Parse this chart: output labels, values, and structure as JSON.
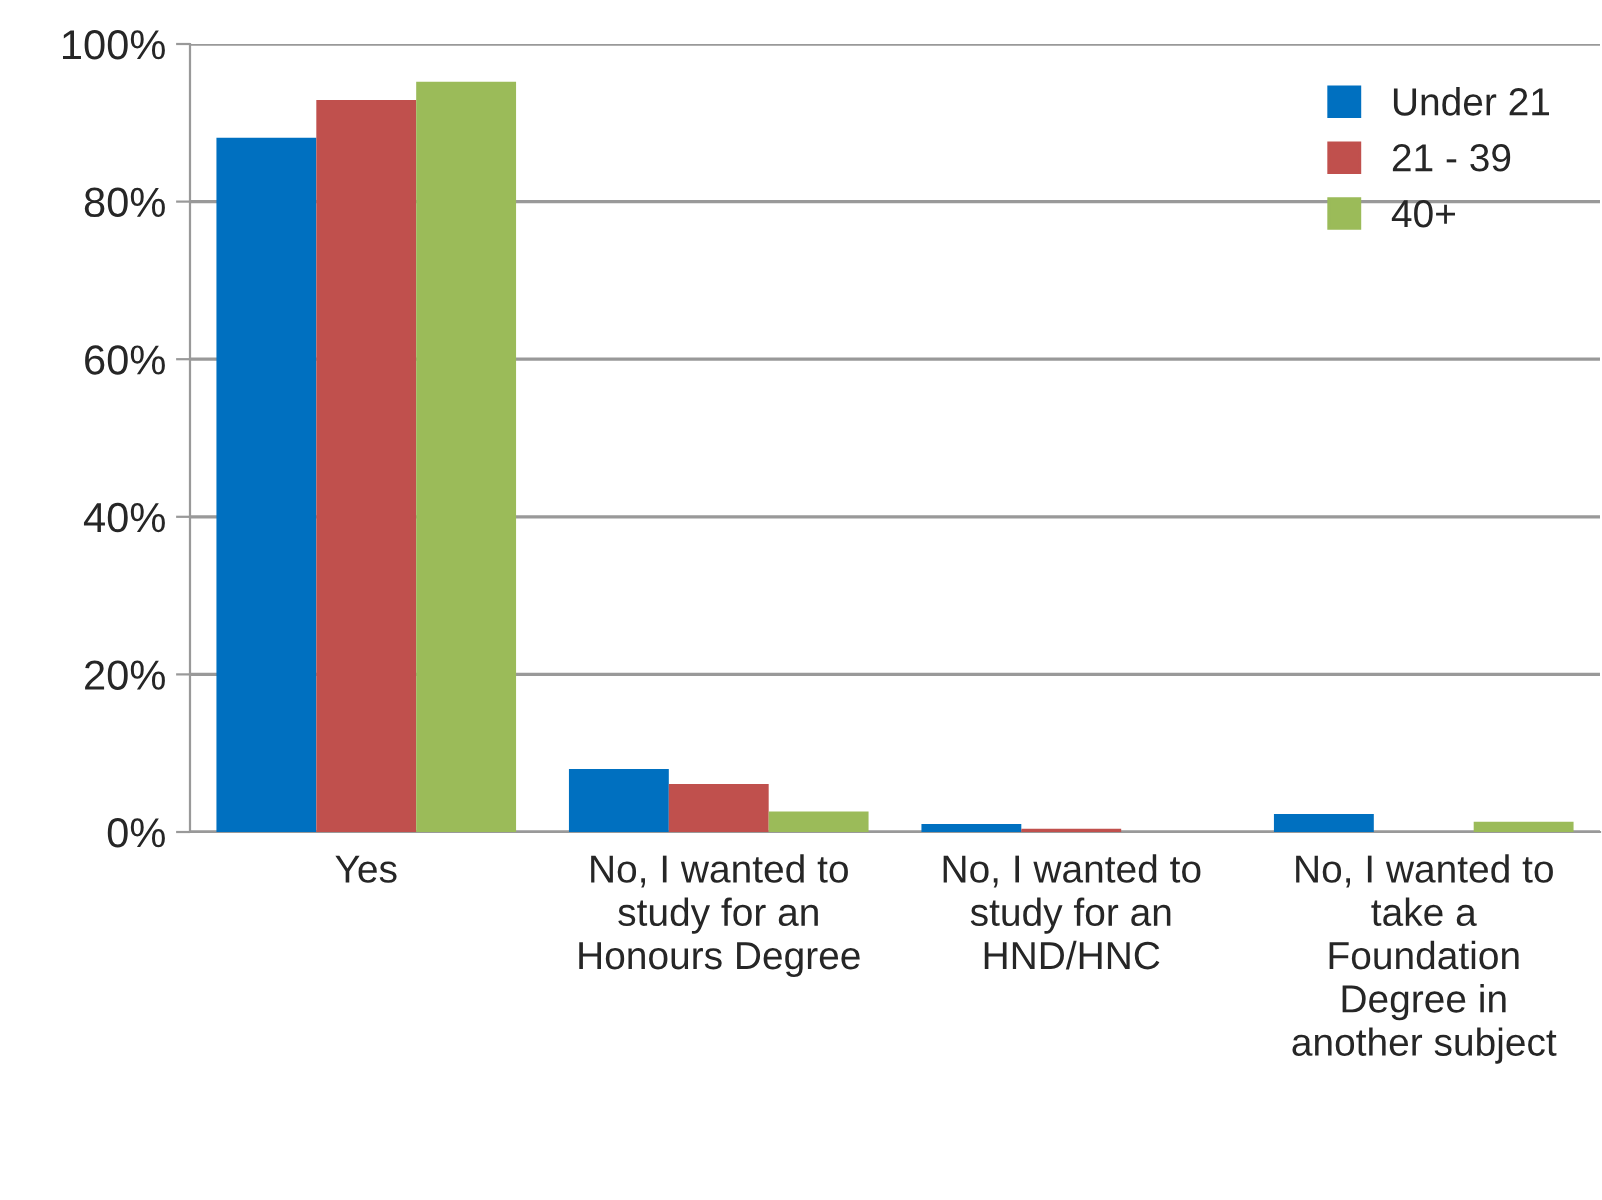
{
  "chart_data": {
    "type": "bar",
    "categories": [
      "Yes",
      "No, I wanted to study for an Honours Degree",
      "No, I wanted to study for an HND/HNC",
      "No, I wanted to take a Foundation Degree in another subject"
    ],
    "series": [
      {
        "name": "Under 21",
        "color": "#0070c0",
        "values": [
          88.1,
          8.0,
          1.0,
          2.3
        ]
      },
      {
        "name": "21 - 39",
        "color": "#c0504d",
        "values": [
          92.9,
          6.1,
          0.4,
          null
        ]
      },
      {
        "name": "40+",
        "color": "#9bbb59",
        "values": [
          95.2,
          2.6,
          null,
          1.3
        ]
      }
    ],
    "ylim": [
      0,
      100
    ],
    "yticks": [
      {
        "value": 0,
        "label": "0%"
      },
      {
        "value": 20,
        "label": "20%"
      },
      {
        "value": 40,
        "label": "40%"
      },
      {
        "value": 60,
        "label": "60%"
      },
      {
        "value": 80,
        "label": "80%"
      },
      {
        "value": 100,
        "label": "100%"
      }
    ],
    "grid": "y",
    "legend": "top right"
  }
}
